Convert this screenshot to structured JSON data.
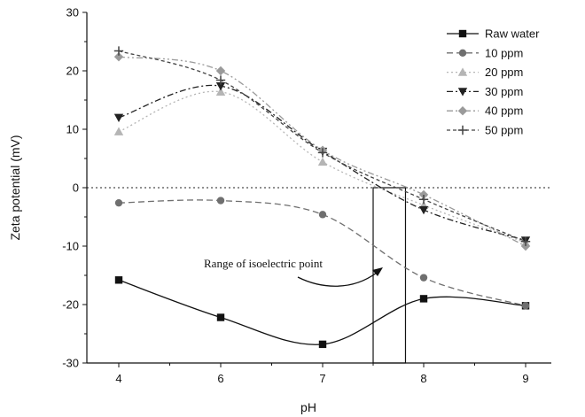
{
  "chart_data": {
    "type": "scatter",
    "xlabel": "pH",
    "ylabel": "Zeta potential (mV)",
    "xlim": [
      3.5,
      9.5
    ],
    "ylim": [
      -30,
      30
    ],
    "x_ticks": [
      4,
      6,
      7,
      8,
      9
    ],
    "y_ticks": [
      -30,
      -20,
      -10,
      0,
      10,
      20,
      30
    ],
    "x": [
      4,
      6,
      7,
      8,
      9
    ],
    "legend_position": "top-right",
    "series": [
      {
        "name": "Raw water",
        "marker": "square",
        "color": "#111111",
        "dash": "solid",
        "values": [
          -15.8,
          -22.2,
          -26.8,
          -19.0,
          -20.2
        ]
      },
      {
        "name": "10 ppm",
        "marker": "circle",
        "color": "#6f6f6f",
        "dash": "dashed",
        "values": [
          -2.6,
          -2.2,
          -4.6,
          -15.4,
          -20.2
        ]
      },
      {
        "name": "20 ppm",
        "marker": "triangle-up",
        "color": "#b5b5b5",
        "dash": "dotted",
        "values": [
          9.6,
          16.4,
          4.4,
          -3.0,
          -9.4
        ]
      },
      {
        "name": "30 ppm",
        "marker": "triangle-down",
        "color": "#222222",
        "dash": "dashdot",
        "values": [
          12.0,
          17.4,
          6.2,
          -3.8,
          -9.0
        ]
      },
      {
        "name": "40 ppm",
        "marker": "diamond",
        "color": "#9a9a9a",
        "dash": "dashdotdot",
        "values": [
          22.4,
          20.0,
          6.4,
          -1.2,
          -10.0
        ]
      },
      {
        "name": "50 ppm",
        "marker": "plus",
        "color": "#444444",
        "dash": "shortdash",
        "values": [
          23.4,
          18.4,
          6.0,
          -2.0,
          -9.2
        ]
      }
    ],
    "zero_line": 0,
    "isoelectric_range": [
      7.5,
      7.82
    ],
    "annotations": [
      {
        "text": "Range of isoelectric point"
      }
    ]
  }
}
